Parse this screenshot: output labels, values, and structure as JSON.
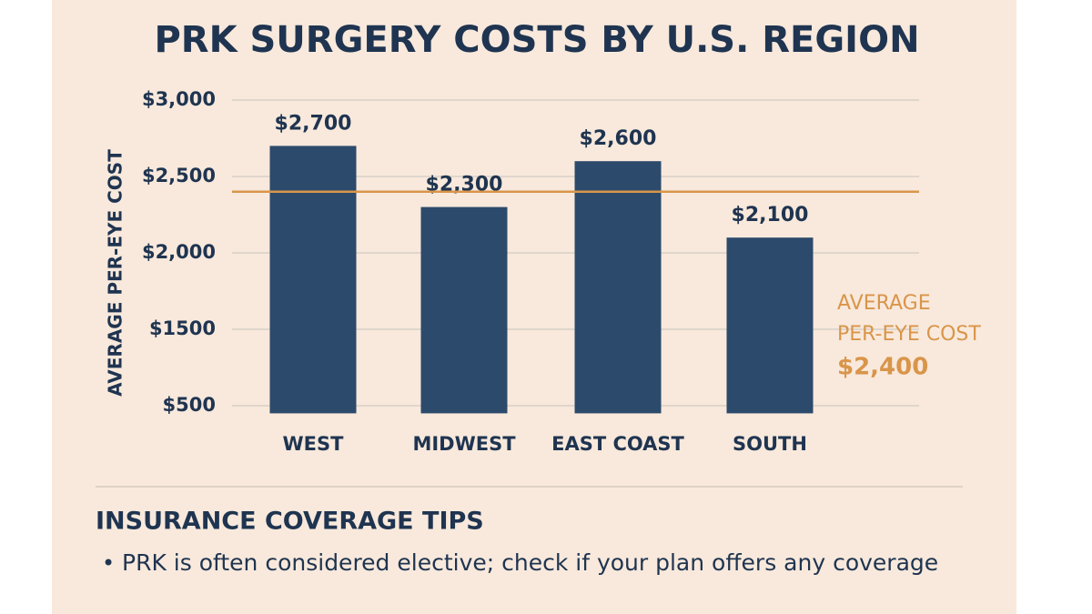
{
  "chart_data": {
    "type": "bar",
    "title": "PRK SURGERY COSTS BY U.S. REGION",
    "y_label": "AVERAGE PER-EYE COST",
    "categories": [
      "WEST",
      "MIDWEST",
      "EAST COAST",
      "SOUTH"
    ],
    "values": [
      2700,
      2300,
      2600,
      2100
    ],
    "value_labels": [
      "$2,700",
      "$2,300",
      "$2,600",
      "$2,100"
    ],
    "color": "#2c4a6b",
    "ylim": [
      400,
      3000
    ],
    "yticks": [
      {
        "value": 3000,
        "label": "$3,000"
      },
      {
        "value": 2500,
        "label": "$2,500"
      },
      {
        "value": 2000,
        "label": "$2,000"
      },
      {
        "value": 1500,
        "label": "$1500"
      },
      {
        "value": 500,
        "label": "$500"
      }
    ],
    "grid": true,
    "average": {
      "label": "AVERAGE PER-EYE COST",
      "value": 2400,
      "value_label": "$2,400",
      "color": "#d9954a"
    }
  },
  "tips": {
    "title": "INSURANCE COVERAGE TIPS",
    "items": [
      "PRK is often considered elective; check if your plan offers any coverage"
    ]
  }
}
